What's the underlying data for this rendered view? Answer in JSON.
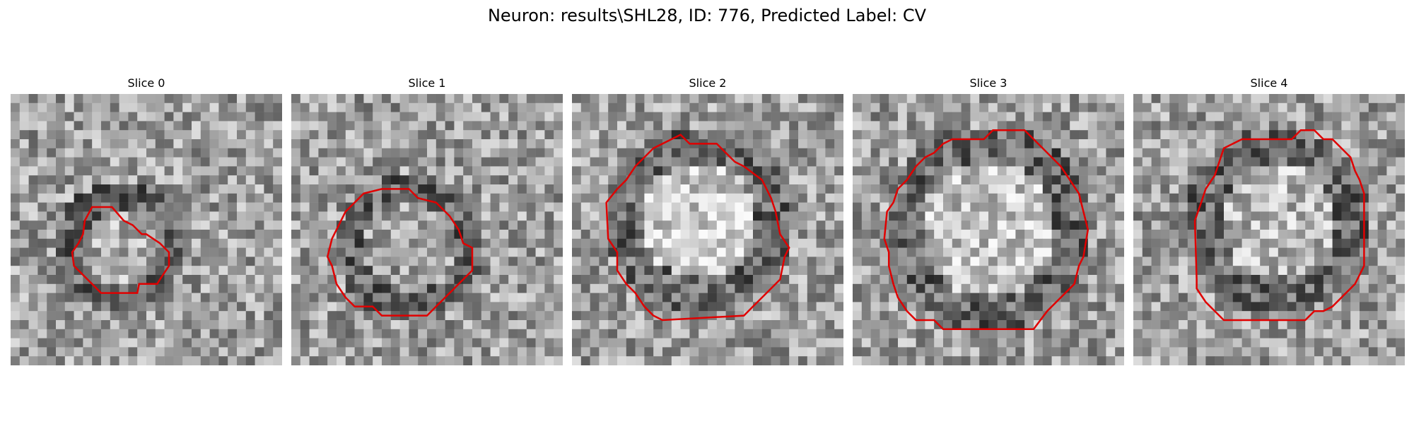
{
  "figure": {
    "title": "Neuron: results\\SHL28, ID: 776, Predicted Label: CV"
  },
  "colors": {
    "contour": "#e00000",
    "background": "#ffffff"
  },
  "slices": [
    {
      "label": "Slice 0"
    },
    {
      "label": "Slice 1"
    },
    {
      "label": "Slice 2"
    },
    {
      "label": "Slice 3"
    },
    {
      "label": "Slice 4"
    }
  ]
}
